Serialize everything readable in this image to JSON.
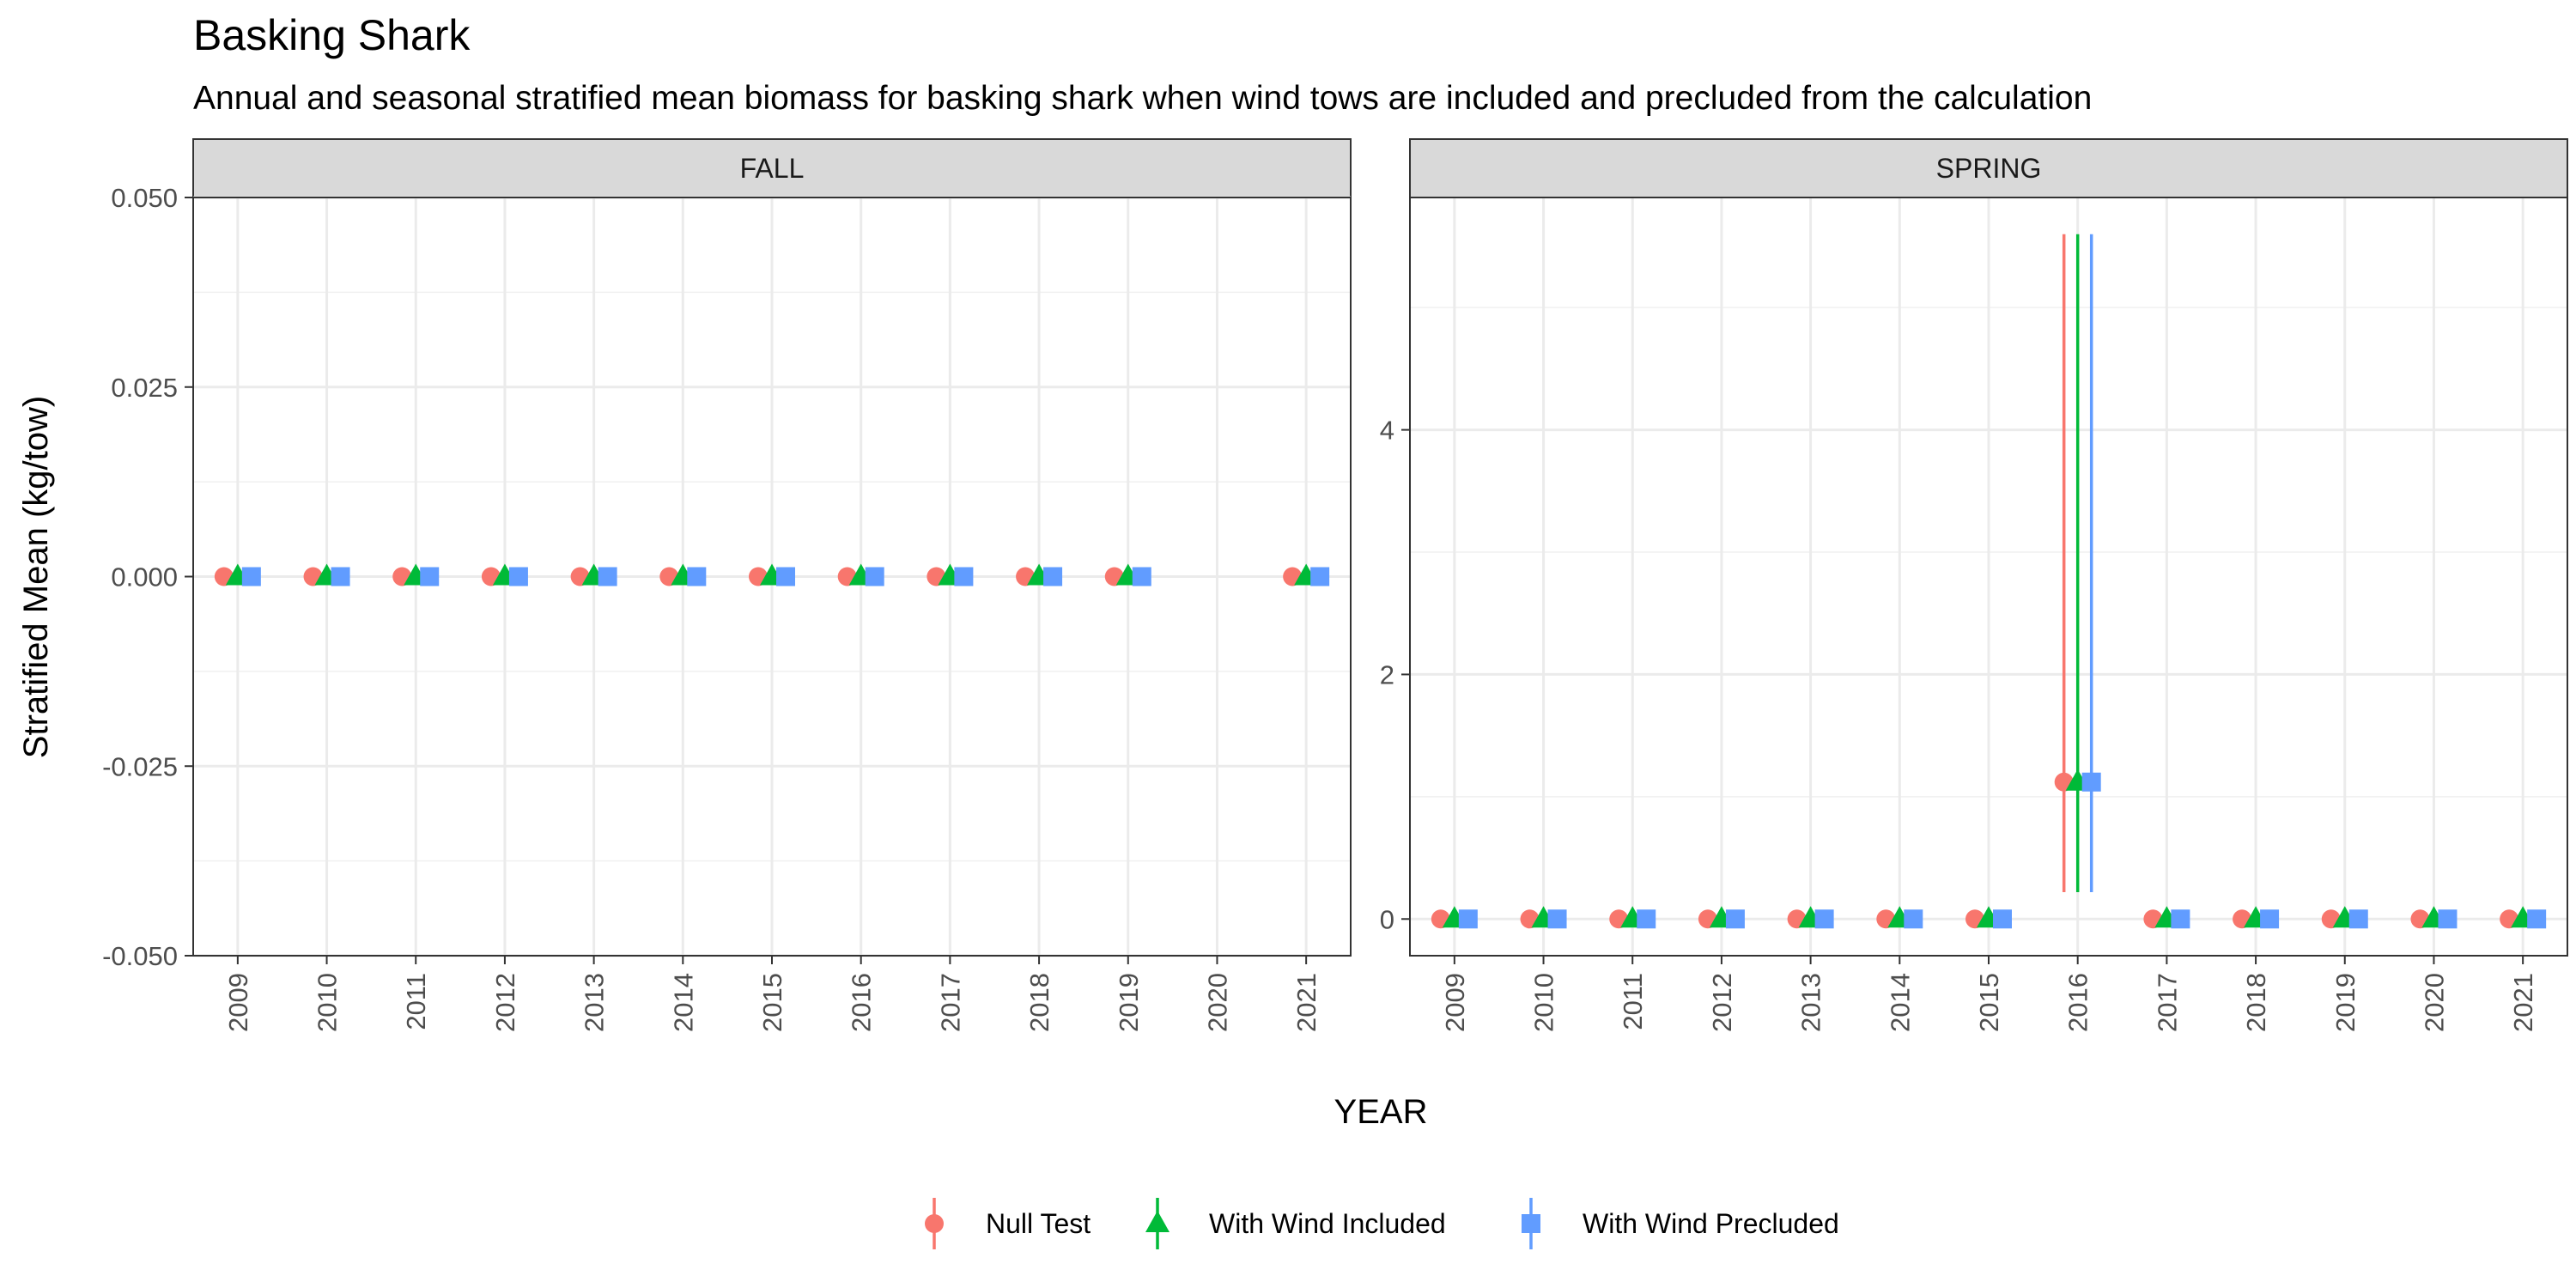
{
  "chart_data": {
    "type": "scatter",
    "title": "Basking Shark",
    "subtitle": "Annual and seasonal stratified mean biomass for basking shark when wind tows are included and precluded from the calculation",
    "xlabel": "YEAR",
    "ylabel": "Stratified Mean (kg/tow)",
    "legend_position": "bottom",
    "grid": true,
    "series": [
      {
        "name": "Null Test",
        "color": "#F8766D",
        "shape": "circle"
      },
      {
        "name": "With Wind Included",
        "color": "#00BA38",
        "shape": "triangle"
      },
      {
        "name": "With Wind Precluded",
        "color": "#619CFF",
        "shape": "square"
      }
    ],
    "panels": [
      {
        "name": "FALL",
        "x": [
          "2009",
          "2010",
          "2011",
          "2012",
          "2013",
          "2014",
          "2015",
          "2016",
          "2017",
          "2018",
          "2019",
          "2020",
          "2021"
        ],
        "ylim": [
          -0.05,
          0.05
        ],
        "yticks": [
          -0.05,
          -0.025,
          0,
          0.025,
          0.05
        ],
        "ytick_labels": [
          "-0.050",
          "-0.025",
          "0.000",
          "0.025",
          "0.050"
        ],
        "points": [
          {
            "x": "2009",
            "y": [
              0,
              0,
              0
            ]
          },
          {
            "x": "2010",
            "y": [
              0,
              0,
              0
            ]
          },
          {
            "x": "2011",
            "y": [
              0,
              0,
              0
            ]
          },
          {
            "x": "2012",
            "y": [
              0,
              0,
              0
            ]
          },
          {
            "x": "2013",
            "y": [
              0,
              0,
              0
            ]
          },
          {
            "x": "2014",
            "y": [
              0,
              0,
              0
            ]
          },
          {
            "x": "2015",
            "y": [
              0,
              0,
              0
            ]
          },
          {
            "x": "2016",
            "y": [
              0,
              0,
              0
            ]
          },
          {
            "x": "2017",
            "y": [
              0,
              0,
              0
            ]
          },
          {
            "x": "2018",
            "y": [
              0,
              0,
              0
            ]
          },
          {
            "x": "2019",
            "y": [
              0,
              0,
              0
            ]
          },
          {
            "x": "2021",
            "y": [
              0,
              0,
              0
            ]
          }
        ]
      },
      {
        "name": "SPRING",
        "x": [
          "2009",
          "2010",
          "2011",
          "2012",
          "2013",
          "2014",
          "2015",
          "2016",
          "2017",
          "2018",
          "2019",
          "2020",
          "2021"
        ],
        "ylim": [
          -0.3,
          5.9
        ],
        "yticks": [
          0,
          2,
          4
        ],
        "ytick_labels": [
          "0",
          "2",
          "4"
        ],
        "points": [
          {
            "x": "2009",
            "y": [
              0,
              0,
              0
            ]
          },
          {
            "x": "2010",
            "y": [
              0,
              0,
              0
            ]
          },
          {
            "x": "2011",
            "y": [
              0,
              0,
              0
            ]
          },
          {
            "x": "2012",
            "y": [
              0,
              0,
              0
            ]
          },
          {
            "x": "2013",
            "y": [
              0,
              0,
              0
            ]
          },
          {
            "x": "2014",
            "y": [
              0,
              0,
              0
            ]
          },
          {
            "x": "2015",
            "y": [
              0,
              0,
              0
            ]
          },
          {
            "x": "2016",
            "y": [
              1.12,
              1.12,
              1.12
            ],
            "lower": [
              0.22,
              0.22,
              0.22
            ],
            "upper": [
              5.6,
              5.6,
              5.6
            ]
          },
          {
            "x": "2017",
            "y": [
              0,
              0,
              0
            ]
          },
          {
            "x": "2018",
            "y": [
              0,
              0,
              0
            ]
          },
          {
            "x": "2019",
            "y": [
              0,
              0,
              0
            ]
          },
          {
            "x": "2020",
            "y": [
              0,
              0,
              0
            ]
          },
          {
            "x": "2021",
            "y": [
              0,
              0,
              0
            ]
          }
        ]
      }
    ]
  }
}
